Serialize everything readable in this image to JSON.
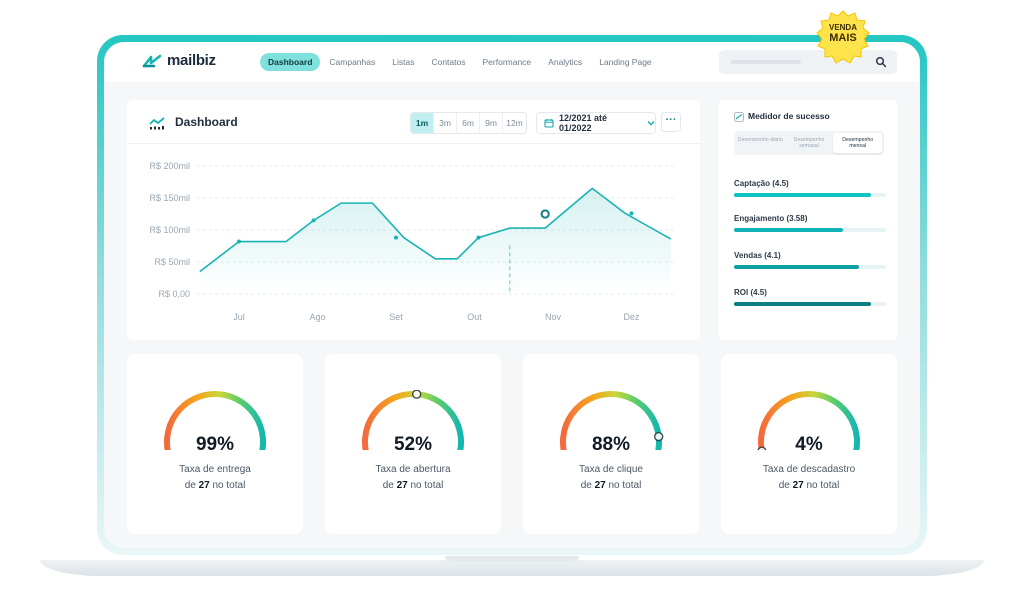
{
  "app": {
    "brand": "mailbiz"
  },
  "nav": {
    "items": [
      {
        "label": "Dashboard",
        "active": true
      },
      {
        "label": "Campanhas"
      },
      {
        "label": "Listas"
      },
      {
        "label": "Contatos"
      },
      {
        "label": "Performance"
      },
      {
        "label": "Analytics"
      },
      {
        "label": "Landing Page"
      }
    ]
  },
  "badge": {
    "line1": "VENDA",
    "line2": "MAIS"
  },
  "dashboard": {
    "title": "Dashboard",
    "periods": [
      "1m",
      "3m",
      "6m",
      "9m",
      "12m"
    ],
    "active_period": "1m",
    "date_range": "12/2021 até 01/2022",
    "more": "···"
  },
  "chart_data": {
    "type": "line",
    "categories": [
      "Jul",
      "Ago",
      "Set",
      "Out",
      "Nov",
      "Dez"
    ],
    "y_ticks": [
      "R$ 0,00",
      "R$ 50mil",
      "R$ 100mil",
      "R$ 150mil",
      "R$ 200mil"
    ],
    "ylim": [
      0,
      200
    ],
    "x": [
      -0.5,
      0,
      0.6,
      0.95,
      1.3,
      1.7,
      2.1,
      2.5,
      2.78,
      3.05,
      3.45,
      3.9,
      4.5,
      4.92,
      5.5
    ],
    "y": [
      35,
      82,
      82,
      115,
      142,
      142,
      88,
      55,
      55,
      88,
      103,
      103,
      165,
      126,
      86
    ],
    "marker_x": [
      0,
      0.95,
      2.0,
      3.05,
      5.0
    ],
    "marker_y": [
      82,
      115,
      88,
      88,
      126
    ],
    "highlight": {
      "x": 3.9,
      "y": 125
    },
    "crosshair_x": 3.45,
    "line_color": "#1bb3b3",
    "grid": true
  },
  "success_meter": {
    "title": "Medidor de sucesso",
    "tabs": [
      "Desempenho diário",
      "Desempenho semanal",
      "Desempenho mensal"
    ],
    "active_tab": "Desempenho mensal",
    "metrics": [
      {
        "label": "Captação (4.5)",
        "value": 4.5,
        "max": 5,
        "color": "#11c2c4"
      },
      {
        "label": "Engajamento  (3.58)",
        "value": 3.58,
        "max": 5,
        "color": "#12b3b6"
      },
      {
        "label": "Vendas (4.1)",
        "value": 4.1,
        "max": 5,
        "color": "#0fa1a4"
      },
      {
        "label": "ROI (4.5)",
        "value": 4.5,
        "max": 5,
        "color": "#0d7f82"
      }
    ]
  },
  "gauges": [
    {
      "value": "99%",
      "fraction": 0.99,
      "label": "Taxa de entrega",
      "sub_prefix": "de",
      "sub_count": "27",
      "sub_suffix": "no total"
    },
    {
      "value": "52%",
      "fraction": 0.52,
      "label": "Taxa de abertura",
      "sub_prefix": "de",
      "sub_count": "27",
      "sub_suffix": "no total"
    },
    {
      "value": "88%",
      "fraction": 0.88,
      "label": "Taxa de clique",
      "sub_prefix": "de",
      "sub_count": "27",
      "sub_suffix": "no total"
    },
    {
      "value": "4%",
      "fraction": 0.04,
      "label": "Taxa de descadastro",
      "sub_prefix": "de",
      "sub_count": "27",
      "sub_suffix": "no total"
    }
  ]
}
